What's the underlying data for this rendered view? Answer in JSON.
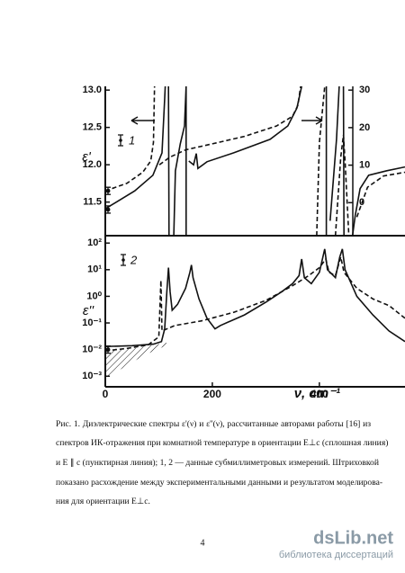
{
  "chart_data": [
    {
      "type": "line",
      "ylabel": "ε'",
      "annotation": "1",
      "xlim": [
        0,
        560
      ],
      "ylim": [
        11.05,
        13.05
      ],
      "yticks": [
        {
          "value": 11.5,
          "label": "11.5"
        },
        {
          "value": 12,
          "label": "12.0"
        },
        {
          "value": 12.5,
          "label": "12.5"
        },
        {
          "value": 13,
          "label": "13.0"
        }
      ],
      "y2lim": [
        -8.8,
        31
      ],
      "y2ticks": [
        0,
        10,
        20,
        30
      ],
      "series": [
        {
          "color": "#111",
          "dashed": false,
          "x": [
            0,
            55,
            89,
            106,
            111,
            112,
            null,
            118,
            119,
            null,
            128,
            131,
            140,
            148,
            151,
            151,
            null,
            156,
            165,
            170,
            173,
            190,
            240,
            308,
            341,
            358,
            367,
            null,
            413,
            413,
            null,
            420,
            432,
            437,
            null,
            445,
            446,
            null,
            462,
            467,
            476,
            492,
            526,
            560
          ],
          "values": [
            11.41,
            11.65,
            11.86,
            12.16,
            12.89,
            13.05,
            null,
            13.05,
            11.05,
            null,
            11.05,
            11.92,
            12.28,
            12.52,
            13.05,
            11.05,
            null,
            12.05,
            12.0,
            12.15,
            11.95,
            12.04,
            12.16,
            12.34,
            12.52,
            12.76,
            13.05,
            null,
            13.05,
            11.05,
            null,
            11.25,
            12.34,
            13.05,
            null,
            13.05,
            11.05,
            null,
            11.05,
            11.32,
            11.68,
            11.86,
            11.92,
            11.97
          ]
        },
        {
          "color": "#111",
          "dashed": true,
          "x": [
            0,
            40,
            70,
            85,
            90,
            92,
            null,
            101,
            120,
            150,
            200,
            260,
            320,
            350,
            360,
            365,
            null,
            395,
            400,
            410,
            null,
            430,
            440,
            445,
            448,
            455,
            null,
            470,
            490,
            520,
            560
          ],
          "values": [
            11.65,
            11.75,
            11.9,
            12.05,
            12.3,
            13.05,
            null,
            12.0,
            12.1,
            12.2,
            12.28,
            12.38,
            12.52,
            12.65,
            12.8,
            13.05,
            null,
            11.05,
            12.3,
            13.05,
            null,
            11.05,
            12.1,
            12.4,
            12.05,
            11.05,
            null,
            11.3,
            11.7,
            11.85,
            11.9
          ]
        }
      ],
      "points": {
        "x": [
          0,
          0
        ],
        "values": [
          11.65,
          11.4
        ]
      }
    },
    {
      "type": "line",
      "ylabel": "ε''",
      "xlabel": "ν, cm⁻¹",
      "annotation": "2",
      "log_y": true,
      "xlim": [
        0,
        560
      ],
      "xticks": [
        0,
        200,
        400
      ],
      "ylim": [
        0.0004,
        150
      ],
      "yticks": [
        {
          "value": 0.001,
          "label": "10⁻³"
        },
        {
          "value": 0.01,
          "label": "10⁻²"
        },
        {
          "value": 0.1,
          "label": "10⁻¹"
        },
        {
          "value": 1,
          "label": "10⁰"
        },
        {
          "value": 10,
          "label": "10¹"
        },
        {
          "value": 100,
          "label": "10²"
        }
      ],
      "series": [
        {
          "color": "#111",
          "dashed": false,
          "x": [
            0,
            50,
            90,
            105,
            111,
            115,
            118,
            121,
            125,
            135,
            150,
            158,
            161,
            164,
            175,
            190,
            205,
            215,
            260,
            300,
            330,
            350,
            362,
            367,
            372,
            385,
            400,
            410,
            415,
            430,
            438,
            443,
            448,
            470,
            500,
            530,
            560
          ],
          "values": [
            0.013,
            0.014,
            0.016,
            0.02,
            0.06,
            1.5,
            12,
            1.5,
            0.3,
            0.5,
            2,
            8,
            15,
            5,
            0.8,
            0.15,
            0.06,
            0.08,
            0.2,
            0.6,
            1.5,
            3,
            6,
            25,
            5,
            3,
            8,
            60,
            10,
            5,
            30,
            60,
            10,
            1,
            0.2,
            0.05,
            0.02
          ]
        },
        {
          "color": "#111",
          "dashed": true,
          "x": [
            0,
            40,
            80,
            100,
            104,
            106,
            130,
            180,
            240,
            300,
            350,
            380,
            400,
            412,
            418,
            430,
            440,
            446,
            470,
            500,
            530,
            560
          ],
          "values": [
            0.009,
            0.011,
            0.015,
            0.03,
            4,
            0.05,
            0.08,
            0.12,
            0.25,
            0.7,
            2.5,
            6,
            12,
            25,
            8,
            6,
            30,
            8,
            2,
            0.8,
            0.45,
            0.15
          ]
        }
      ],
      "points": {
        "x": [
          0
        ],
        "values": [
          0.01
        ]
      }
    }
  ],
  "caption": {
    "lines": [
      "Рис. 1. Диэлектрические спектры ε'(ν) и ε''(ν), рассчитанные авторами работы [16] из",
      "спектров ИК-отражения при комнатной температуре в ориентации E⊥c (сплошная линия)",
      "и E ∥ c (пунктирная линия); 1, 2 — данные субмиллиметровых измерений. Штриховкой",
      "показано расхождение между экспериментальными данными и результатом моделирова-",
      "ния для ориентации E⊥c."
    ]
  },
  "page_number": "4",
  "watermark": {
    "site": "dsLib.net",
    "subtitle": "библиотека диссертаций"
  }
}
